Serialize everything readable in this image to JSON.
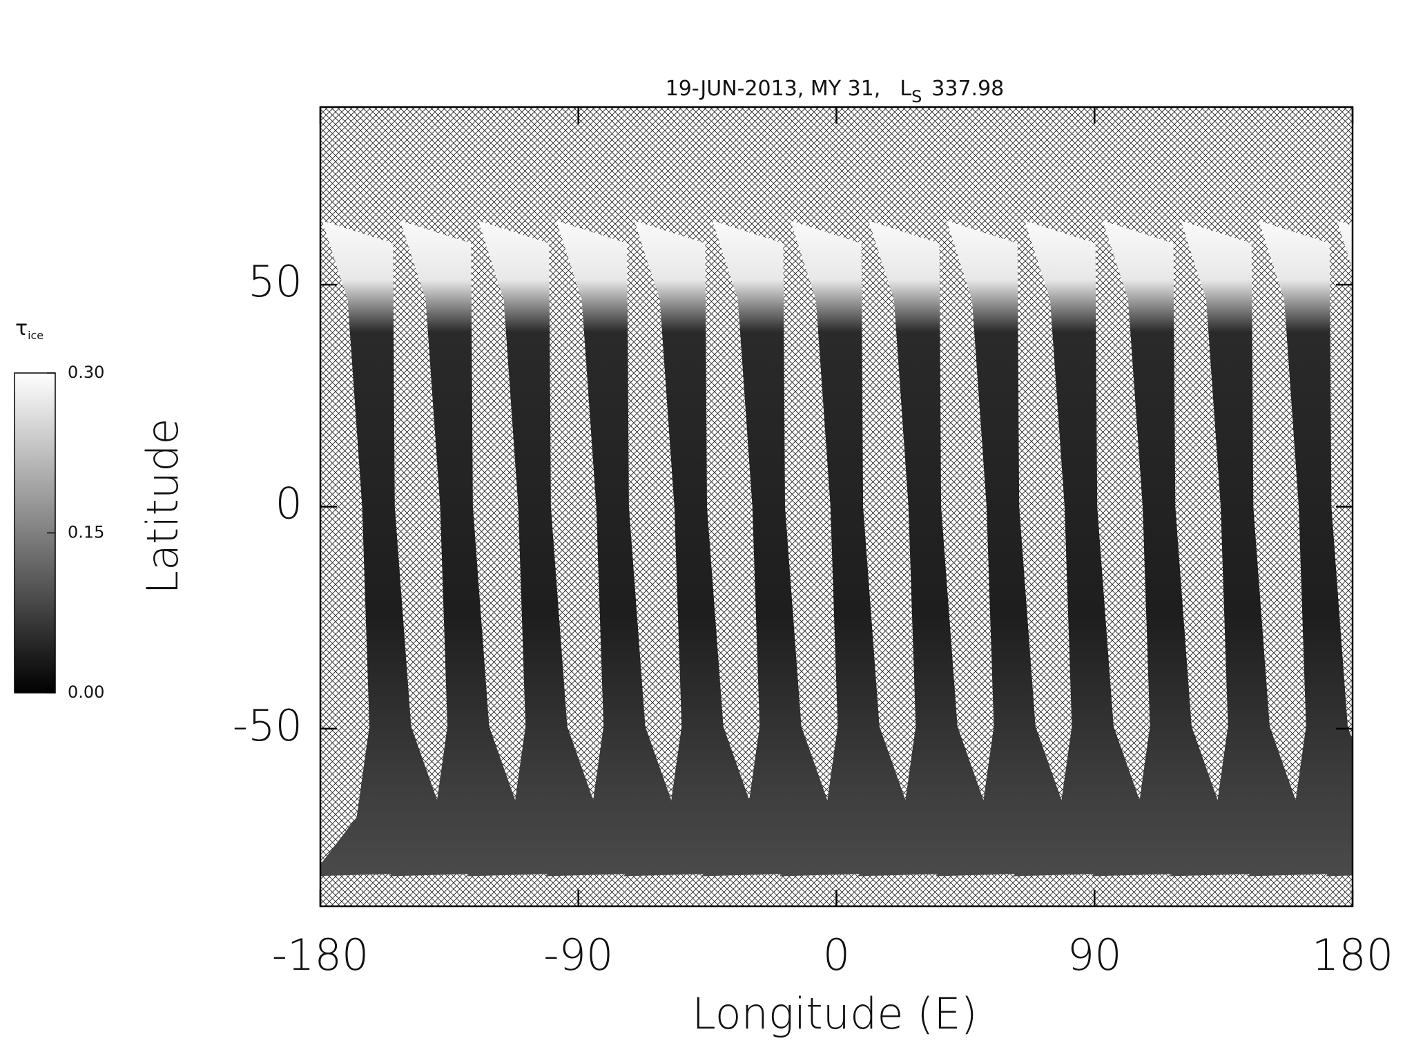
{
  "chart_data": {
    "type": "map",
    "title": "19-JUN-2013, MY 31,",
    "ls_symbol": "L",
    "ls_subscript": "S",
    "ls_value": 337.98,
    "xlabel": "Longitude (E)",
    "ylabel": "Latitude",
    "xlim": [
      -180,
      180
    ],
    "xticks": [
      -180,
      -90,
      0,
      90,
      180
    ],
    "ylim": [
      -90,
      90
    ],
    "yticks": [
      -50,
      0,
      50
    ],
    "missing_fill": "crosshatch",
    "colorbar": {
      "label": "τ",
      "label_subscript": "ice",
      "colormap": "gray",
      "lim": [
        0,
        0.3
      ],
      "ticks": [
        {
          "value": 0,
          "label": "0.00"
        },
        {
          "value": 0.15,
          "label": "0.15"
        },
        {
          "value": 0.3,
          "label": "0.30"
        }
      ]
    }
  }
}
